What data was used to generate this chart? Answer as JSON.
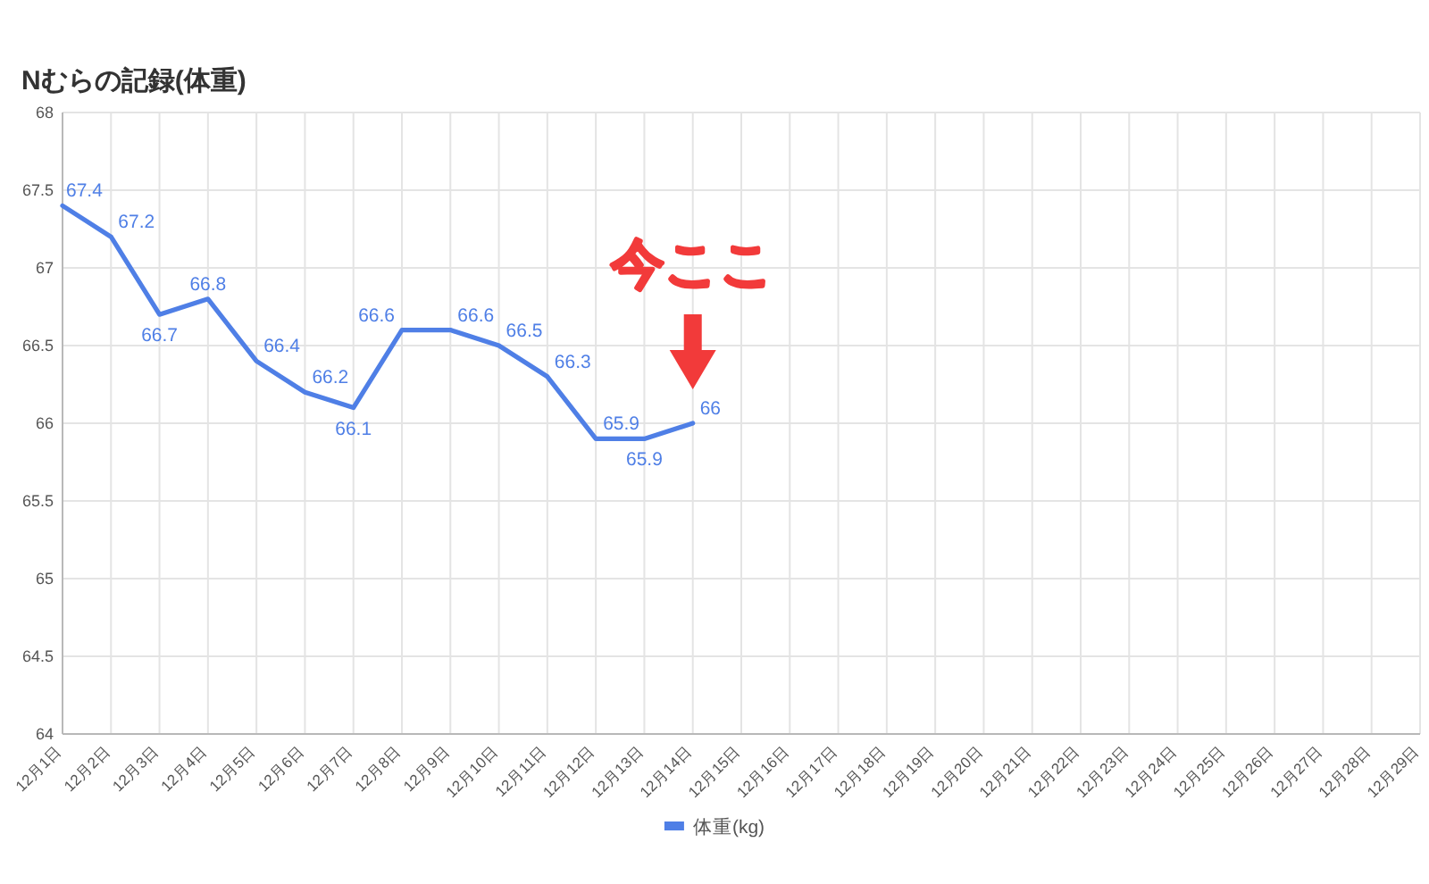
{
  "chart_data": {
    "type": "line",
    "title": "Nむらの記録(体重)",
    "categories": [
      "12月1日",
      "12月2日",
      "12月3日",
      "12月4日",
      "12月5日",
      "12月6日",
      "12月7日",
      "12月8日",
      "12月9日",
      "12月10日",
      "12月11日",
      "12月12日",
      "12月13日",
      "12月14日",
      "12月15日",
      "12月16日",
      "12月17日",
      "12月18日",
      "12月19日",
      "12月20日",
      "12月21日",
      "12月22日",
      "12月23日",
      "12月24日",
      "12月25日",
      "12月26日",
      "12月27日",
      "12月28日",
      "12月29日"
    ],
    "series": [
      {
        "name": "体重(kg)",
        "color": "#4f7fe6",
        "values": [
          67.4,
          67.2,
          66.7,
          66.8,
          66.4,
          66.2,
          66.1,
          66.6,
          66.6,
          66.5,
          66.3,
          65.9,
          65.9,
          66,
          null,
          null,
          null,
          null,
          null,
          null,
          null,
          null,
          null,
          null,
          null,
          null,
          null,
          null,
          null
        ]
      }
    ],
    "ylim": [
      64,
      68
    ],
    "yticks": [
      64,
      64.5,
      65,
      65.5,
      66,
      66.5,
      67,
      67.5,
      68
    ],
    "grid": true,
    "legend": "bottom",
    "data_labels": true,
    "annotations": [
      {
        "text": "今ここ",
        "x": "12月14日",
        "y": 66
      }
    ]
  }
}
